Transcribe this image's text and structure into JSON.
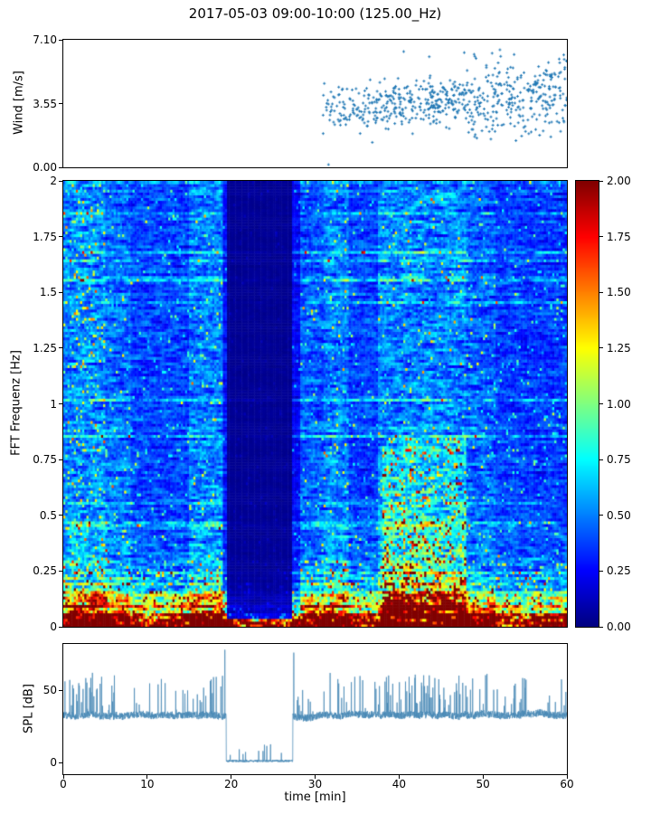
{
  "figure": {
    "title": "2017-05-03 09:00-10:00 (125.00_Hz)",
    "xlabel": "time [min]",
    "xlim": [
      0,
      60
    ],
    "xticks": {
      "values": [
        0,
        10,
        20,
        30,
        40,
        50,
        60
      ],
      "labels": [
        "0",
        "10",
        "20",
        "30",
        "40",
        "50",
        "60"
      ]
    },
    "background": "#ffffff",
    "axis_color": "#000000"
  },
  "chart_data": [
    {
      "id": "wind",
      "type": "scatter",
      "ylabel": "Wind [m/s]",
      "xlim": [
        0,
        60
      ],
      "ylim": [
        0,
        7.1
      ],
      "yticks": {
        "values": [
          0,
          3.55,
          7.1
        ],
        "labels": [
          "0.00",
          "3.55",
          "7.10"
        ]
      },
      "marker": "plus",
      "marker_color": "#1f77b4",
      "summary": "Wind speed samples only between ~30 and 60 min; mean rises from ~3.3 to ~4.1 m/s; spread ~±1.5 m/s; extremes ~0.4 and ~7.0 m/s, wider spread after ~48 min",
      "gen": {
        "seed": 11,
        "t_start": 30.4,
        "t_end": 60,
        "n": 680,
        "base": 3.25,
        "trend": 0.028,
        "sd": 0.65,
        "outlier_p": 0.022,
        "spread_boost_after": 48,
        "spread_boost": 1.5,
        "clip": [
          0.15,
          7.05
        ],
        "end_bias": 0.8
      }
    },
    {
      "id": "fft",
      "type": "heatmap",
      "ylabel": "FFT Frequenz [Hz]",
      "xlim": [
        0,
        60
      ],
      "ylim": [
        0,
        2
      ],
      "yticks": {
        "values": [
          0,
          0.25,
          0.5,
          0.75,
          1,
          1.25,
          1.5,
          1.75,
          2
        ],
        "labels": [
          "0",
          "0.25",
          "0.5",
          "0.75",
          "1",
          "1.25",
          "1.5",
          "1.75",
          "2"
        ]
      },
      "clim": [
        0,
        2
      ],
      "colormap": "jet",
      "colorbar": {
        "values": [
          0,
          0.25,
          0.5,
          0.75,
          1,
          1.25,
          1.5,
          1.75,
          2
        ],
        "labels": [
          "0.00",
          "0.25",
          "0.50",
          "0.75",
          "1.00",
          "1.25",
          "1.50",
          "1.75",
          "2.00"
        ]
      },
      "summary": "Spectrogram 0-2 Hz over 60 min, jet colormap: hot red energy below ~0.15 Hz throughout; near-zero dark-blue band ~19.6-27.3 min; strong red/orange patches ~38-48 min below ~0.85 Hz; cyan/green streaky bands near 0-5, 15-19 and 31-34 min; blue streaky background elsewhere",
      "features": {
        "grid": {
          "nt": 240,
          "nf": 160
        },
        "seed": 23,
        "quiet_band": {
          "t": [
            19.6,
            27.3
          ],
          "gain": 0.1
        },
        "time_bands": [
          [
            0,
            5,
            1.35
          ],
          [
            5,
            8,
            1.15
          ],
          [
            8,
            15,
            0.95
          ],
          [
            15,
            19,
            1.25
          ],
          [
            19,
            19.6,
            0.7
          ],
          [
            27.3,
            28.2,
            0.6
          ],
          [
            28.2,
            31,
            1.05
          ],
          [
            31,
            34,
            1.25
          ],
          [
            34,
            37.5,
            0.95
          ],
          [
            37.5,
            48,
            1.3
          ],
          [
            48,
            51.5,
            1.1
          ],
          [
            51.5,
            60,
            0.92
          ]
        ],
        "hot_region": {
          "t": [
            38,
            48
          ],
          "f": [
            0.05,
            0.85
          ],
          "gain": 1.35,
          "spike_p": 0.18
        },
        "low_freq": {
          "base": 0.72,
          "amp": 1.05,
          "decay": 0.16,
          "extra_below_015": 0.75,
          "bottom_strip_f": 0.06,
          "bottom_boost": 1.6,
          "bottom_keep_gain": 0.85
        },
        "spike_p": 0.04,
        "lowf_spike_bonus": 0.06,
        "early_spike_bonus": 0.05,
        "row_hot_p": 0.12,
        "ar_keep": 0.62
      }
    },
    {
      "id": "spl",
      "type": "line",
      "ylabel": "SPL [dB]",
      "xlim": [
        0,
        60
      ],
      "ylim": [
        -8,
        82
      ],
      "yticks": {
        "values": [
          0,
          50
        ],
        "labels": [
          "0",
          "50"
        ]
      },
      "line_color": "#4787b5",
      "summary": "SPL ~30-45 dB with spikes to ~65 dB; silent gap ~19.4-27.4 min near 0 dB with sparse small spikes; tall spikes to ~78 dB at gap edges; denser spike activity 37-48 min",
      "gen": {
        "seed": 5,
        "n": 2800,
        "base": 33,
        "wander": 1.2,
        "jitter": 5,
        "gap": [
          19.4,
          27.35
        ],
        "gap_level": 0.4,
        "gap_spike_p": 0.025,
        "spike_p": 0.05,
        "early_busy": [
          0,
          5,
          0.09
        ],
        "pre_gap_busy": [
          15.5,
          19.2,
          0.09
        ],
        "busy": [
          37,
          48,
          0.12
        ],
        "tall_spikes": [
          [
            19.25,
            78
          ],
          [
            27.45,
            76
          ]
        ]
      }
    }
  ]
}
